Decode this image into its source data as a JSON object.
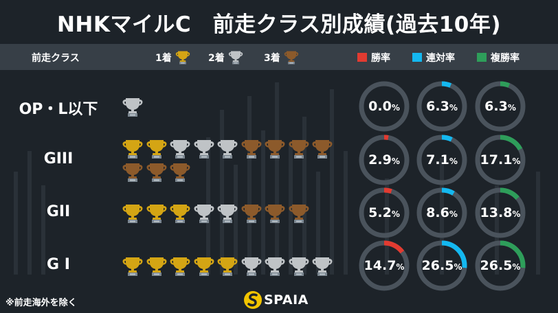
{
  "title": "NHKマイルC　前走クラス別成績(過去10年)",
  "legend": {
    "class_header": "前走クラス",
    "first_label": "1着",
    "second_label": "2着",
    "third_label": "3着",
    "win_label": "勝率",
    "place_label": "連対率",
    "show_label": "複勝率"
  },
  "colors": {
    "gold": "#d4a514",
    "silver": "#bfc3c6",
    "bronze": "#8c5a2b",
    "win": "#e23b31",
    "place": "#14b8f0",
    "show": "#2e9e5a",
    "ring_bg": "#4a535c"
  },
  "chart_data": {
    "type": "table",
    "title": "NHKマイルC　前走クラス別成績(過去10年)",
    "columns": [
      "1着",
      "2着",
      "3着",
      "勝率",
      "連対率",
      "複勝率"
    ],
    "rows": [
      {
        "label": "OP・L以下",
        "first": 0,
        "second": 1,
        "third": 0,
        "win": "0.0",
        "place": "6.3",
        "show": "6.3"
      },
      {
        "label": "GIII",
        "first": 2,
        "second": 3,
        "third": 7,
        "win": "2.9",
        "place": "7.1",
        "show": "17.1"
      },
      {
        "label": "GII",
        "first": 3,
        "second": 2,
        "third": 3,
        "win": "5.2",
        "place": "8.6",
        "show": "13.8"
      },
      {
        "label": "G I",
        "first": 5,
        "second": 4,
        "third": 0,
        "win": "14.7",
        "place": "26.5",
        "show": "26.5"
      }
    ]
  },
  "percent_unit": "%",
  "footnote": "※前走海外を除く",
  "logo_text": "SPAIA"
}
